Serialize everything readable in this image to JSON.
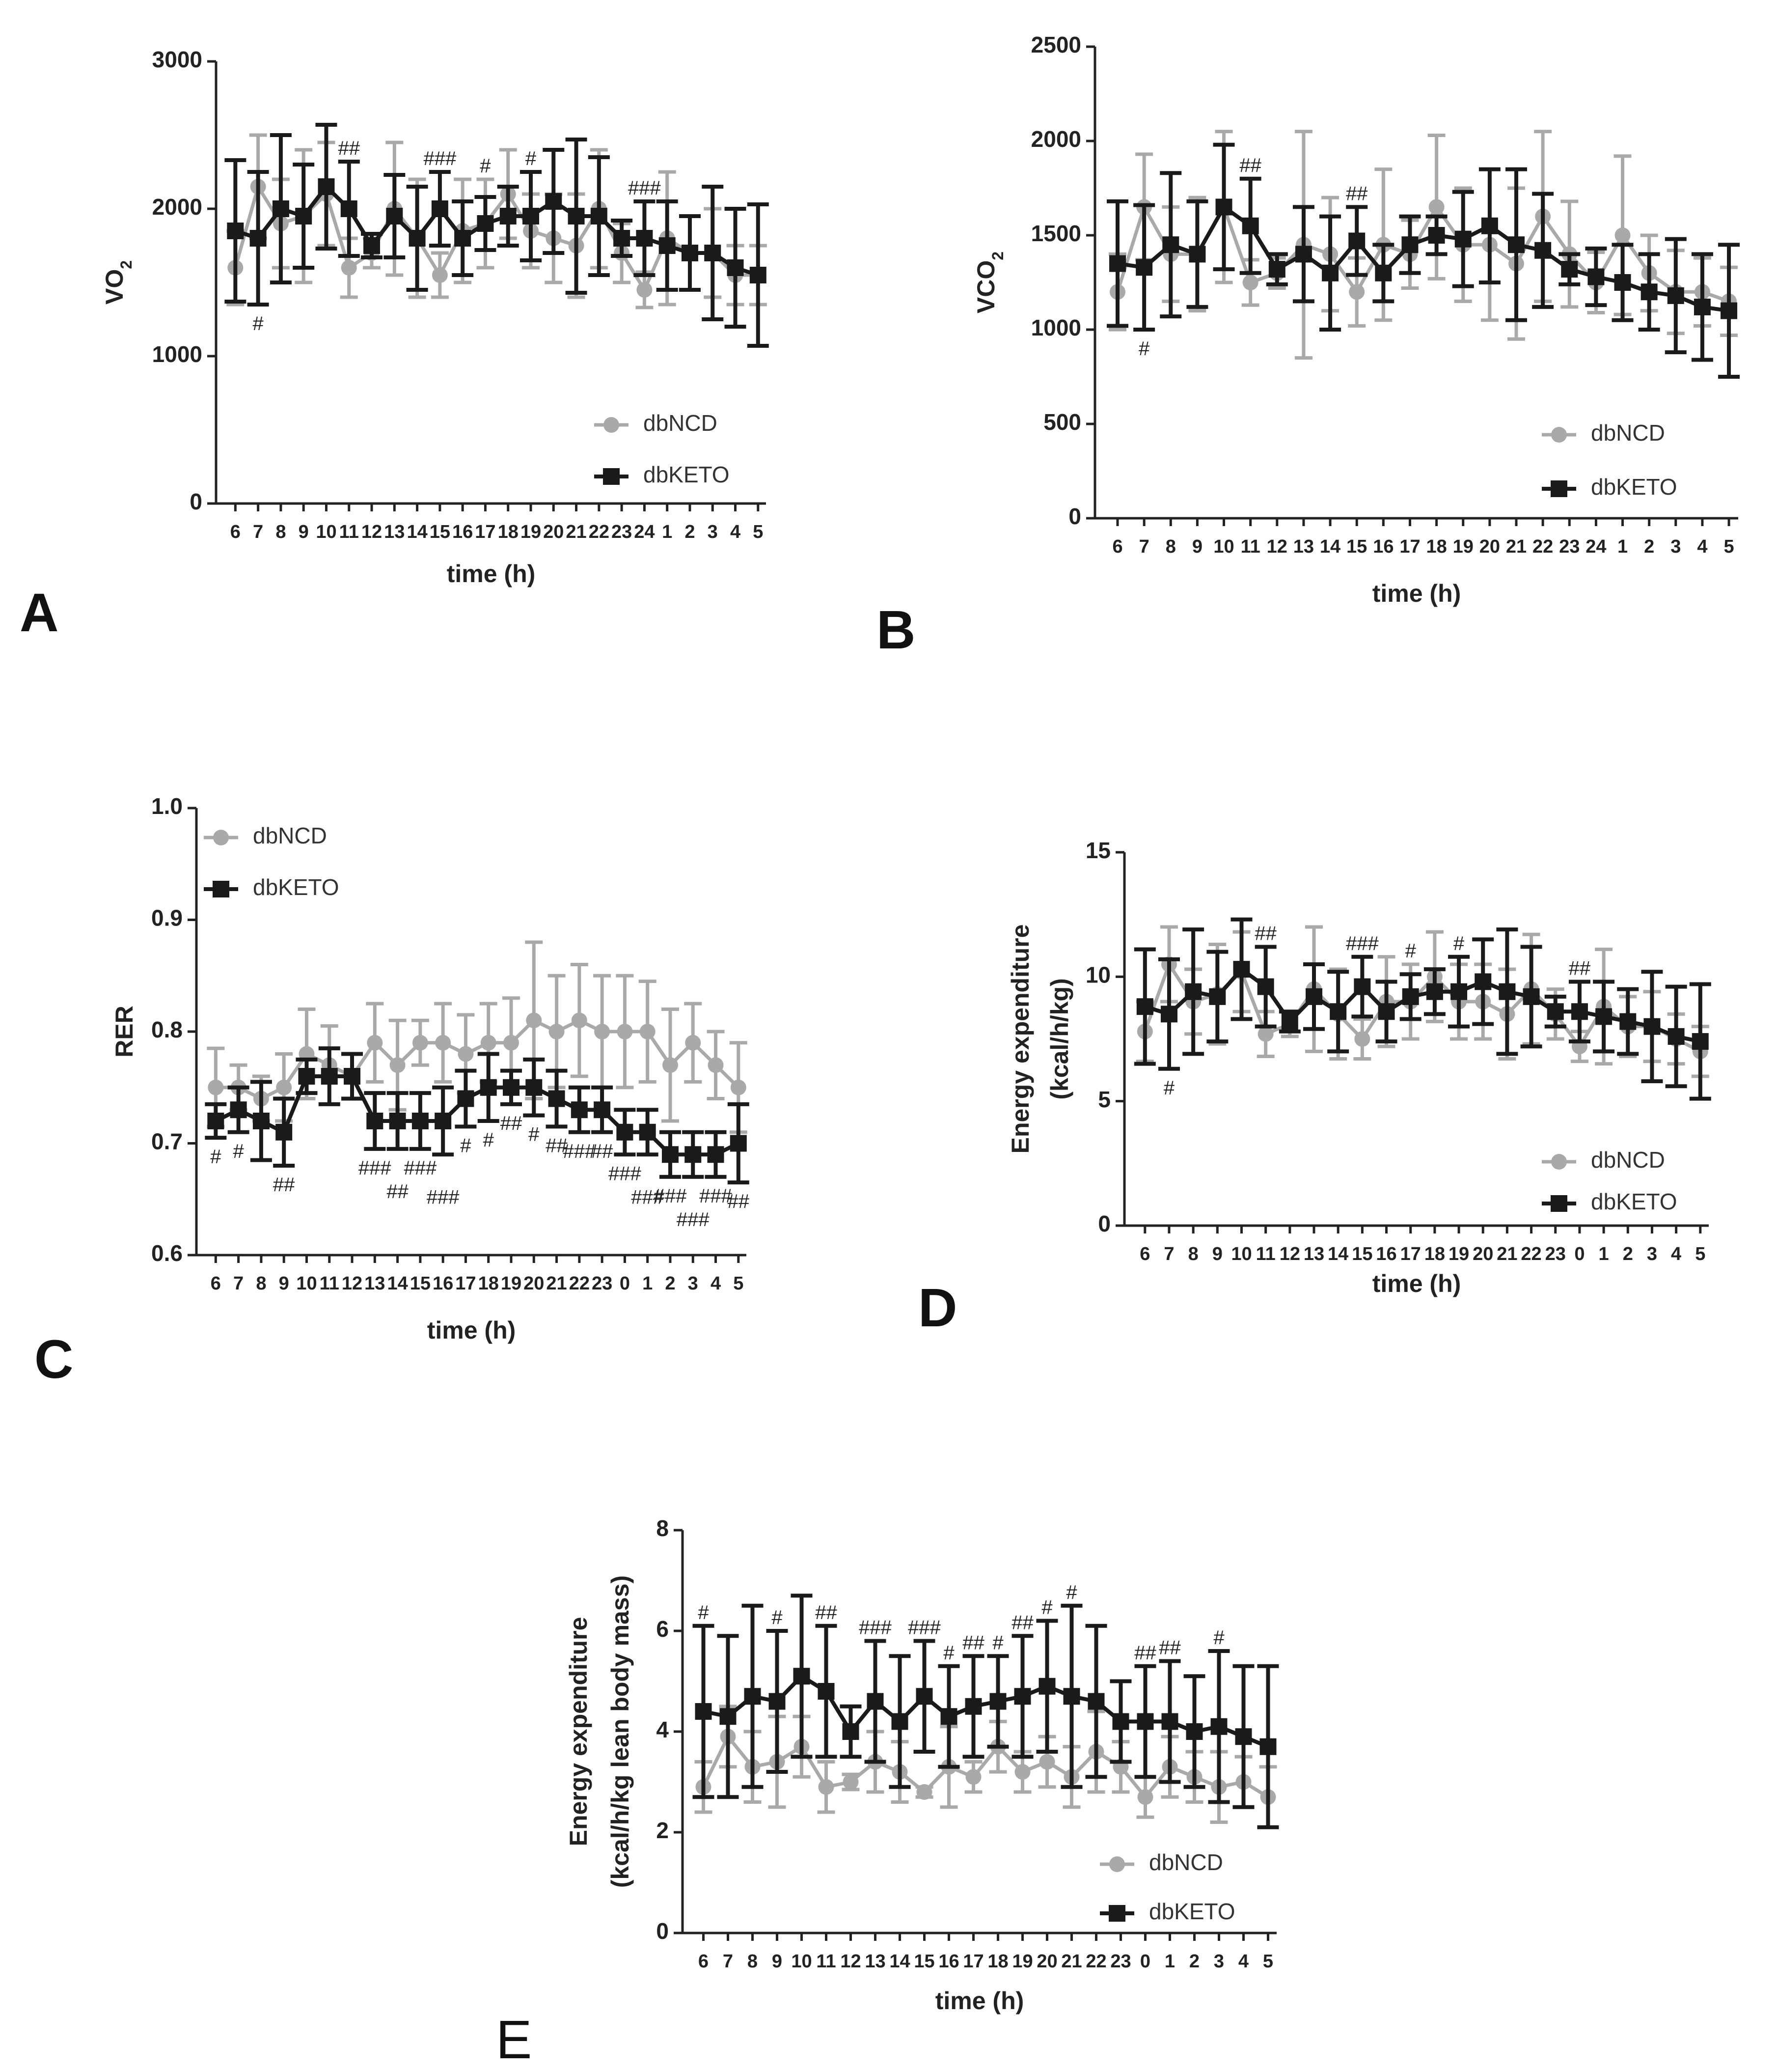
{
  "colors": {
    "ncd": "#a9a9a9",
    "keto": "#1a1a1a",
    "axis": "#222222"
  },
  "chart_data": [
    {
      "id": "A",
      "panel_label": "A",
      "type": "line",
      "xlabel": "time (h)",
      "ylabel_main": "VO",
      "ylabel_sub": "2",
      "ylim": [
        0,
        3000
      ],
      "yticks": [
        0,
        1000,
        2000,
        3000
      ],
      "categories": [
        "6",
        "7",
        "8",
        "9",
        "10",
        "11",
        "12",
        "13",
        "14",
        "15",
        "16",
        "17",
        "18",
        "19",
        "20",
        "21",
        "22",
        "23",
        "24",
        "1",
        "2",
        "3",
        "4",
        "5"
      ],
      "series": [
        {
          "name": "dbNCD",
          "values": [
            1600,
            2150,
            1900,
            1950,
            2100,
            1600,
            1700,
            2000,
            1800,
            1550,
            1850,
            1900,
            2100,
            1850,
            1800,
            1750,
            2000,
            1700,
            1450,
            1800,
            1700,
            1700,
            1550,
            1550
          ],
          "errors": [
            250,
            350,
            300,
            450,
            350,
            200,
            100,
            450,
            400,
            150,
            350,
            300,
            300,
            250,
            300,
            350,
            400,
            200,
            120,
            450,
            250,
            300,
            200,
            200
          ]
        },
        {
          "name": "dbKETO",
          "values": [
            1850,
            1800,
            2000,
            1950,
            2150,
            2000,
            1750,
            1950,
            1800,
            2000,
            1800,
            1900,
            1950,
            1950,
            2050,
            1950,
            1950,
            1800,
            1800,
            1750,
            1700,
            1700,
            1600,
            1550
          ],
          "errors": [
            480,
            450,
            500,
            350,
            420,
            320,
            80,
            280,
            350,
            250,
            250,
            180,
            200,
            300,
            350,
            520,
            400,
            120,
            250,
            300,
            250,
            450,
            400,
            480
          ]
        }
      ],
      "annotations": [
        {
          "index": 1,
          "text": "#",
          "pos": "below"
        },
        {
          "index": 5,
          "text": "##",
          "pos": "above"
        },
        {
          "index": 9,
          "text": "###",
          "pos": "above"
        },
        {
          "index": 11,
          "text": "#",
          "pos": "above"
        },
        {
          "index": 13,
          "text": "#",
          "pos": "above"
        },
        {
          "index": 18,
          "text": "###",
          "pos": "above"
        }
      ]
    },
    {
      "id": "B",
      "panel_label": "B",
      "type": "line",
      "xlabel": "time (h)",
      "ylabel_main": "VCO",
      "ylabel_sub": "2",
      "ylim": [
        0,
        2500
      ],
      "yticks": [
        0,
        500,
        1000,
        1500,
        2000,
        2500
      ],
      "categories": [
        "6",
        "7",
        "8",
        "9",
        "10",
        "11",
        "12",
        "13",
        "14",
        "15",
        "16",
        "17",
        "18",
        "19",
        "20",
        "21",
        "22",
        "23",
        "24",
        "1",
        "2",
        "3",
        "4",
        "5"
      ],
      "series": [
        {
          "name": "dbNCD",
          "values": [
            1200,
            1650,
            1400,
            1400,
            1650,
            1250,
            1300,
            1450,
            1400,
            1200,
            1450,
            1400,
            1650,
            1450,
            1450,
            1350,
            1600,
            1400,
            1250,
            1500,
            1300,
            1200,
            1200,
            1150
          ],
          "errors": [
            200,
            280,
            250,
            300,
            400,
            120,
            80,
            600,
            300,
            180,
            400,
            180,
            380,
            300,
            400,
            400,
            450,
            280,
            160,
            420,
            200,
            220,
            180,
            180
          ]
        },
        {
          "name": "dbKETO",
          "values": [
            1350,
            1330,
            1450,
            1400,
            1650,
            1550,
            1320,
            1400,
            1300,
            1470,
            1300,
            1450,
            1500,
            1480,
            1550,
            1450,
            1420,
            1320,
            1280,
            1250,
            1200,
            1180,
            1120,
            1100
          ],
          "errors": [
            330,
            330,
            380,
            280,
            330,
            250,
            80,
            250,
            300,
            180,
            150,
            150,
            100,
            250,
            300,
            400,
            300,
            80,
            150,
            200,
            200,
            300,
            280,
            350
          ]
        }
      ],
      "annotations": [
        {
          "index": 1,
          "text": "#",
          "pos": "below"
        },
        {
          "index": 5,
          "text": "##",
          "pos": "above"
        },
        {
          "index": 9,
          "text": "##",
          "pos": "above"
        }
      ]
    },
    {
      "id": "C",
      "panel_label": "C",
      "type": "line",
      "xlabel": "time (h)",
      "ylabel_main": "RER",
      "ylabel_sub": "",
      "ylim": [
        0.6,
        1.0
      ],
      "yticks": [
        0.6,
        0.7,
        0.8,
        0.9,
        1.0
      ],
      "ytick_labels": [
        "0.6",
        "0.7",
        "0.8",
        "0.9",
        "1.0"
      ],
      "categories": [
        "6",
        "7",
        "8",
        "9",
        "10",
        "11",
        "12",
        "13",
        "14",
        "15",
        "16",
        "17",
        "18",
        "19",
        "20",
        "21",
        "22",
        "23",
        "0",
        "1",
        "2",
        "3",
        "4",
        "5"
      ],
      "series": [
        {
          "name": "dbNCD",
          "values": [
            0.75,
            0.75,
            0.74,
            0.75,
            0.78,
            0.77,
            0.76,
            0.79,
            0.77,
            0.79,
            0.79,
            0.78,
            0.79,
            0.79,
            0.81,
            0.8,
            0.81,
            0.8,
            0.8,
            0.8,
            0.77,
            0.79,
            0.77,
            0.75
          ],
          "errors": [
            0.035,
            0.02,
            0.02,
            0.03,
            0.04,
            0.035,
            0.02,
            0.035,
            0.04,
            0.02,
            0.035,
            0.035,
            0.035,
            0.04,
            0.07,
            0.05,
            0.05,
            0.05,
            0.05,
            0.045,
            0.05,
            0.035,
            0.03,
            0.04
          ]
        },
        {
          "name": "dbKETO",
          "values": [
            0.72,
            0.73,
            0.72,
            0.71,
            0.76,
            0.76,
            0.76,
            0.72,
            0.72,
            0.72,
            0.72,
            0.74,
            0.75,
            0.75,
            0.75,
            0.74,
            0.73,
            0.73,
            0.71,
            0.71,
            0.69,
            0.69,
            0.69,
            0.7
          ],
          "errors": [
            0.015,
            0.02,
            0.035,
            0.03,
            0.015,
            0.025,
            0.02,
            0.025,
            0.025,
            0.025,
            0.03,
            0.025,
            0.03,
            0.015,
            0.025,
            0.025,
            0.02,
            0.02,
            0.02,
            0.02,
            0.02,
            0.02,
            0.02,
            0.035
          ]
        }
      ],
      "annotations": [
        {
          "index": 0,
          "text": "#",
          "pos": "below"
        },
        {
          "index": 1,
          "text": "#",
          "pos": "below"
        },
        {
          "index": 3,
          "text": "##",
          "pos": "below"
        },
        {
          "index": 7,
          "text": "###",
          "pos": "below"
        },
        {
          "index": 8,
          "text": "##",
          "pos": "below2"
        },
        {
          "index": 9,
          "text": "###",
          "pos": "below"
        },
        {
          "index": 10,
          "text": "###",
          "pos": "below2"
        },
        {
          "index": 11,
          "text": "#",
          "pos": "below"
        },
        {
          "index": 12,
          "text": "#",
          "pos": "below"
        },
        {
          "index": 13,
          "text": "##",
          "pos": "below"
        },
        {
          "index": 14,
          "text": "#",
          "pos": "below"
        },
        {
          "index": 15,
          "text": "##",
          "pos": "below"
        },
        {
          "index": 16,
          "text": "###",
          "pos": "below"
        },
        {
          "index": 17,
          "text": "##",
          "pos": "below"
        },
        {
          "index": 18,
          "text": "###",
          "pos": "below"
        },
        {
          "index": 19,
          "text": "###",
          "pos": "below2"
        },
        {
          "index": 20,
          "text": "###",
          "pos": "below"
        },
        {
          "index": 21,
          "text": "###",
          "pos": "below2"
        },
        {
          "index": 22,
          "text": "###",
          "pos": "below"
        },
        {
          "index": 23,
          "text": "##",
          "pos": "below"
        }
      ]
    },
    {
      "id": "D",
      "panel_label": "D",
      "type": "line",
      "xlabel": "time (h)",
      "ylabel_main": "Energy expenditure",
      "ylabel_line2": "(kcal/h/kg)",
      "ylabel_sub": "",
      "ylim": [
        0,
        15
      ],
      "yticks": [
        0,
        5,
        10,
        15
      ],
      "categories": [
        "6",
        "7",
        "8",
        "9",
        "10",
        "11",
        "12",
        "13",
        "14",
        "15",
        "16",
        "17",
        "18",
        "19",
        "20",
        "21",
        "22",
        "23",
        "0",
        "1",
        "2",
        "3",
        "4",
        "5"
      ],
      "series": [
        {
          "name": "dbNCD",
          "values": [
            7.8,
            10.5,
            9.0,
            9.3,
            10.2,
            7.7,
            8.1,
            9.5,
            8.5,
            7.5,
            9.0,
            9.0,
            10.0,
            9.0,
            9.0,
            8.5,
            9.5,
            8.5,
            7.2,
            8.8,
            8.0,
            8.0,
            7.5,
            7.0
          ],
          "errors": [
            1.2,
            1.5,
            1.3,
            2.0,
            1.6,
            0.9,
            0.5,
            2.5,
            1.8,
            0.8,
            1.8,
            1.5,
            1.8,
            1.5,
            1.5,
            1.8,
            2.2,
            1.0,
            0.6,
            2.3,
            1.2,
            1.4,
            1.0,
            1.0
          ]
        },
        {
          "name": "dbKETO",
          "values": [
            8.8,
            8.5,
            9.4,
            9.2,
            10.3,
            9.6,
            8.2,
            9.2,
            8.6,
            9.6,
            8.6,
            9.2,
            9.4,
            9.4,
            9.8,
            9.4,
            9.2,
            8.6,
            8.6,
            8.4,
            8.2,
            8.0,
            7.6,
            7.4
          ],
          "errors": [
            2.3,
            2.2,
            2.5,
            1.8,
            2.0,
            1.6,
            0.4,
            1.3,
            1.6,
            1.2,
            1.2,
            0.9,
            0.9,
            1.4,
            1.7,
            2.5,
            2.0,
            0.6,
            1.2,
            1.4,
            1.3,
            2.2,
            2.0,
            2.3
          ]
        }
      ],
      "annotations": [
        {
          "index": 1,
          "text": "#",
          "pos": "below"
        },
        {
          "index": 5,
          "text": "##",
          "pos": "above"
        },
        {
          "index": 9,
          "text": "###",
          "pos": "above"
        },
        {
          "index": 11,
          "text": "#",
          "pos": "above"
        },
        {
          "index": 13,
          "text": "#",
          "pos": "above"
        },
        {
          "index": 18,
          "text": "##",
          "pos": "above"
        }
      ]
    },
    {
      "id": "E",
      "panel_label": "E",
      "type": "line",
      "xlabel": "time (h)",
      "ylabel_main": "Energy expenditure",
      "ylabel_line2": "(kcal/h/kg lean body mass)",
      "ylabel_sub": "",
      "ylim": [
        0,
        8
      ],
      "yticks": [
        0,
        2,
        4,
        6,
        8
      ],
      "categories": [
        "6",
        "7",
        "8",
        "9",
        "10",
        "11",
        "12",
        "13",
        "14",
        "15",
        "16",
        "17",
        "18",
        "19",
        "20",
        "21",
        "22",
        "23",
        "0",
        "1",
        "2",
        "3",
        "4",
        "5"
      ],
      "series": [
        {
          "name": "dbNCD",
          "values": [
            2.9,
            3.9,
            3.3,
            3.4,
            3.7,
            2.9,
            3.0,
            3.4,
            3.2,
            2.8,
            3.3,
            3.1,
            3.7,
            3.2,
            3.4,
            3.1,
            3.6,
            3.3,
            2.7,
            3.3,
            3.1,
            2.9,
            3.0,
            2.7
          ],
          "errors": [
            0.5,
            0.6,
            0.7,
            0.9,
            0.6,
            0.5,
            0.15,
            0.6,
            0.6,
            0.1,
            0.8,
            0.3,
            0.5,
            0.4,
            0.5,
            0.6,
            0.8,
            0.5,
            0.4,
            0.6,
            0.5,
            0.7,
            0.5,
            0.6
          ]
        },
        {
          "name": "dbKETO",
          "values": [
            4.4,
            4.3,
            4.7,
            4.6,
            5.1,
            4.8,
            4.0,
            4.6,
            4.2,
            4.7,
            4.3,
            4.5,
            4.6,
            4.7,
            4.9,
            4.7,
            4.6,
            4.2,
            4.2,
            4.2,
            4.0,
            4.1,
            3.9,
            3.7
          ],
          "errors": [
            1.7,
            1.6,
            1.8,
            1.4,
            1.6,
            1.3,
            0.5,
            1.2,
            1.3,
            1.1,
            1.0,
            1.0,
            0.9,
            1.2,
            1.3,
            1.8,
            1.5,
            0.8,
            1.1,
            1.2,
            1.1,
            1.5,
            1.4,
            1.6
          ]
        }
      ],
      "annotations": [
        {
          "index": 0,
          "text": "#",
          "pos": "above"
        },
        {
          "index": 3,
          "text": "#",
          "pos": "above"
        },
        {
          "index": 5,
          "text": "##",
          "pos": "above"
        },
        {
          "index": 7,
          "text": "###",
          "pos": "above"
        },
        {
          "index": 9,
          "text": "###",
          "pos": "above"
        },
        {
          "index": 10,
          "text": "#",
          "pos": "above"
        },
        {
          "index": 11,
          "text": "##",
          "pos": "above"
        },
        {
          "index": 12,
          "text": "#",
          "pos": "above"
        },
        {
          "index": 13,
          "text": "##",
          "pos": "above"
        },
        {
          "index": 14,
          "text": "#",
          "pos": "above"
        },
        {
          "index": 15,
          "text": "#",
          "pos": "above"
        },
        {
          "index": 18,
          "text": "##",
          "pos": "above"
        },
        {
          "index": 19,
          "text": "##",
          "pos": "above"
        },
        {
          "index": 21,
          "text": "#",
          "pos": "above"
        }
      ]
    }
  ]
}
